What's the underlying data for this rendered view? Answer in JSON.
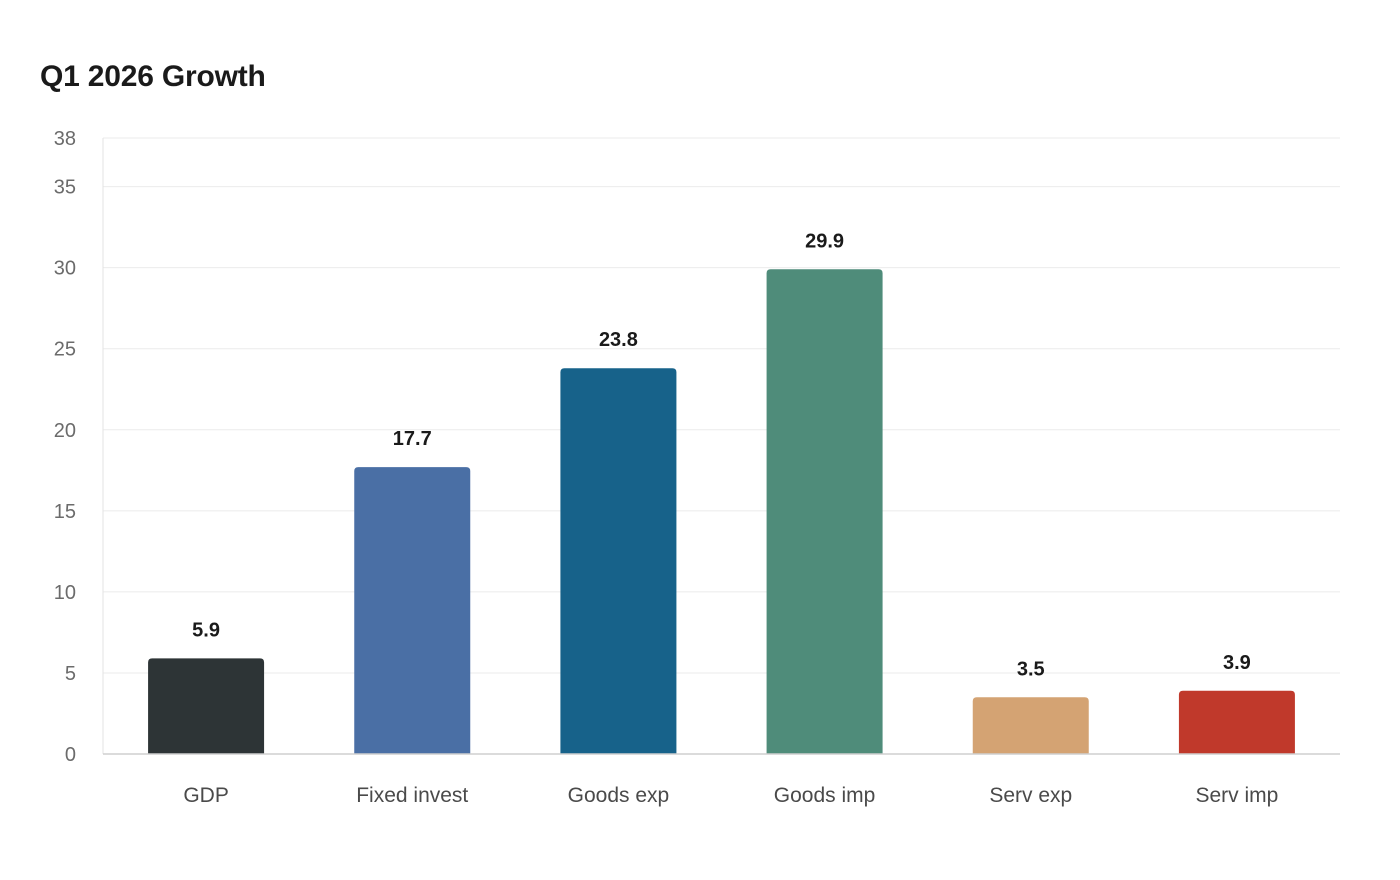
{
  "chart_data": {
    "type": "bar",
    "title": "Q1 2026 Growth",
    "xlabel": "",
    "ylabel": "",
    "categories": [
      "GDP",
      "Fixed invest",
      "Goods exp",
      "Goods imp",
      "Serv exp",
      "Serv imp"
    ],
    "values": [
      5.9,
      17.7,
      23.8,
      29.9,
      3.5,
      3.9
    ],
    "value_labels": [
      "5.9",
      "17.7",
      "23.8",
      "29.9",
      "3.5",
      "3.9"
    ],
    "colors": [
      "#2d3436",
      "#4a6fa5",
      "#17628a",
      "#4f8c7a",
      "#d4a373",
      "#c0392b"
    ],
    "ylim": [
      0,
      38
    ],
    "yticks": [
      0,
      5,
      10,
      15,
      20,
      25,
      30,
      35,
      38
    ],
    "grid": true,
    "legend": "none"
  }
}
